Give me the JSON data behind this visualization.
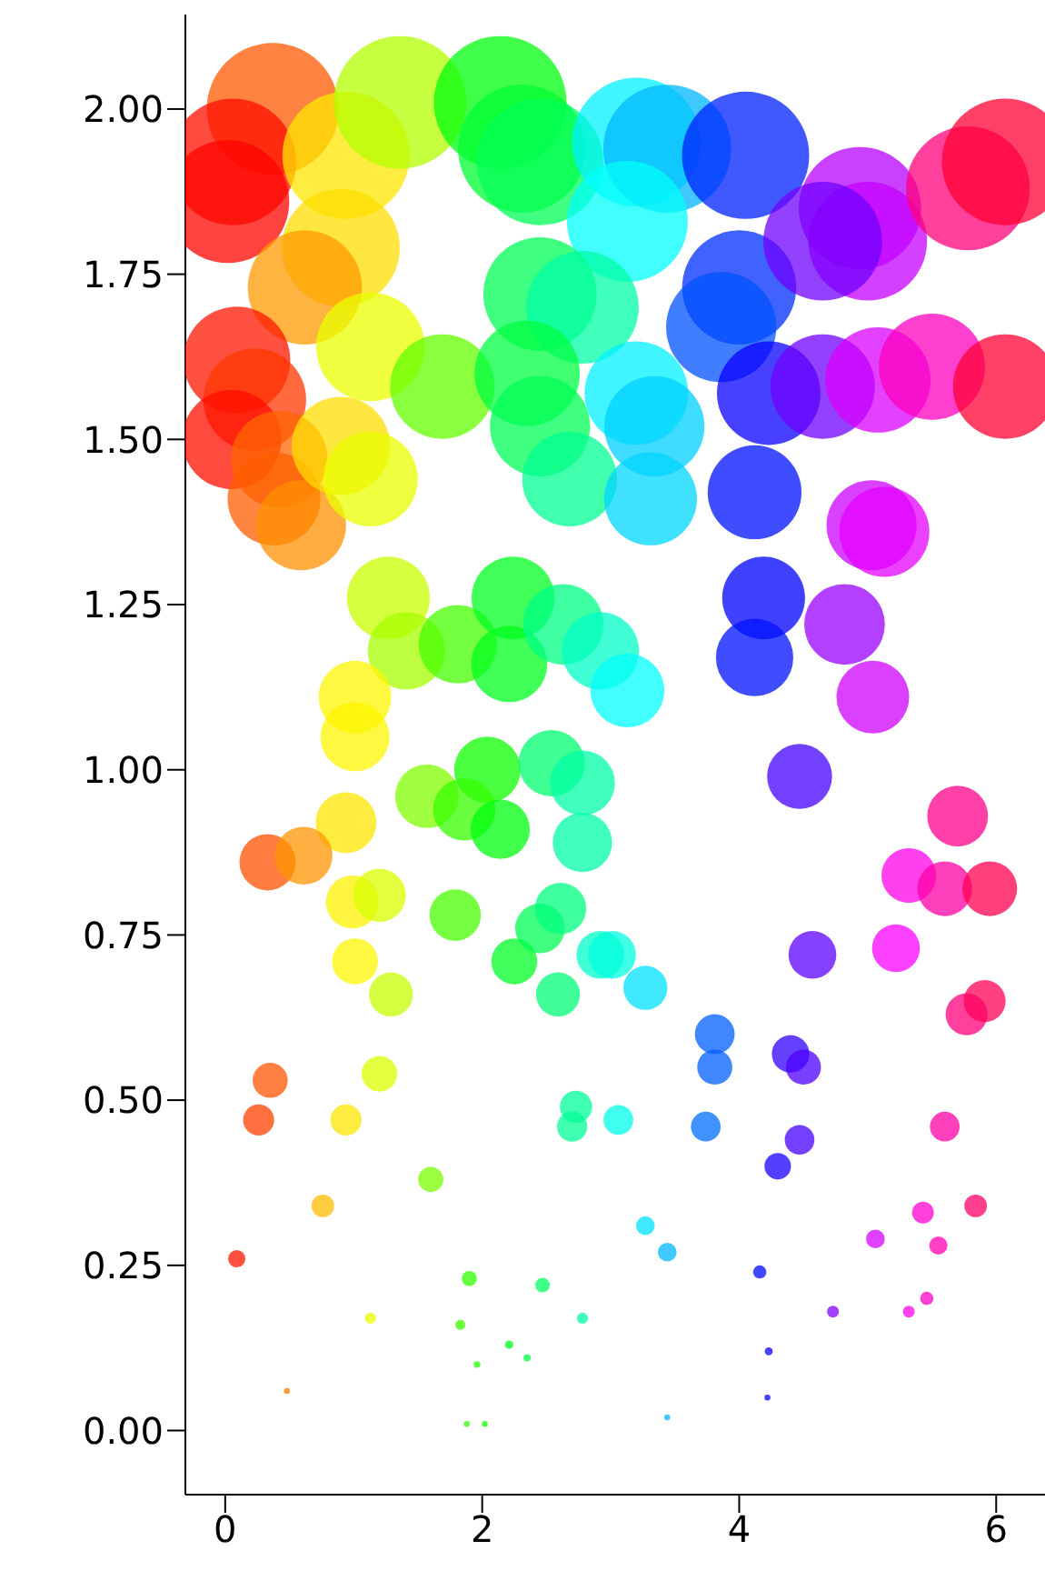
{
  "chart_data": {
    "type": "bubble",
    "x": [
      0.37,
      0.06,
      0.02,
      0.94,
      0.9,
      0.62,
      1.36,
      2.14,
      2.31,
      2.45,
      3.2,
      3.44,
      3.13,
      4.05,
      4.0,
      3.86,
      4.94,
      5.0,
      4.65,
      5.78,
      6.07,
      2.45,
      2.78,
      1.13,
      0.09,
      0.23,
      0.05,
      0.42,
      0.38,
      0.59,
      0.9,
      1.13,
      1.69,
      2.35,
      2.45,
      2.68,
      3.2,
      3.34,
      3.31,
      4.12,
      4.23,
      4.65,
      5.08,
      5.5,
      6.07,
      5.03,
      5.13,
      4.19,
      4.12,
      4.82,
      5.04,
      1.27,
      1.41,
      1.81,
      2.24,
      2.21,
      2.63,
      2.92,
      3.13,
      1.01,
      1.01,
      1.57,
      2.04,
      1.86,
      2.14,
      2.54,
      2.78,
      2.78,
      0.94,
      0.33,
      0.61,
      0.99,
      1.2,
      1.01,
      1.29,
      1.79,
      2.25,
      2.45,
      2.61,
      2.59,
      2.92,
      3.01,
      3.27,
      4.47,
      5.7,
      5.32,
      5.6,
      5.95,
      4.57,
      5.22,
      5.77,
      5.91,
      3.81,
      3.81,
      4.4,
      4.5,
      3.06,
      3.74,
      4.47,
      4.3,
      5.6,
      3.27,
      3.44,
      4.16,
      4.73,
      5.06,
      5.43,
      5.55,
      5.84,
      5.32,
      5.46,
      4.23,
      4.22,
      3.44,
      2.73,
      2.7,
      0.35,
      0.26,
      0.94,
      1.2,
      1.6,
      0.76,
      0.09,
      1.9,
      2.47,
      2.78,
      1.13,
      1.83,
      2.21,
      2.35,
      1.96,
      0.48,
      1.88,
      2.02
    ],
    "values": [
      2.0,
      1.92,
      1.86,
      1.93,
      1.79,
      1.73,
      2.01,
      2.01,
      1.94,
      1.92,
      1.95,
      1.94,
      1.83,
      1.93,
      1.73,
      1.67,
      1.85,
      1.8,
      1.8,
      1.88,
      1.92,
      1.72,
      1.7,
      1.64,
      1.62,
      1.56,
      1.5,
      1.47,
      1.41,
      1.37,
      1.49,
      1.44,
      1.58,
      1.6,
      1.52,
      1.44,
      1.57,
      1.52,
      1.41,
      1.42,
      1.57,
      1.58,
      1.59,
      1.61,
      1.58,
      1.37,
      1.36,
      1.26,
      1.17,
      1.22,
      1.11,
      1.26,
      1.18,
      1.19,
      1.26,
      1.16,
      1.22,
      1.18,
      1.12,
      1.11,
      1.05,
      0.96,
      1.0,
      0.94,
      0.91,
      1.01,
      0.98,
      0.89,
      0.92,
      0.86,
      0.87,
      0.8,
      0.81,
      0.71,
      0.66,
      0.78,
      0.71,
      0.76,
      0.79,
      0.66,
      0.72,
      0.72,
      0.67,
      0.99,
      0.93,
      0.84,
      0.82,
      0.82,
      0.72,
      0.73,
      0.63,
      0.65,
      0.6,
      0.55,
      0.57,
      0.55,
      0.47,
      0.46,
      0.44,
      0.4,
      0.46,
      0.31,
      0.27,
      0.24,
      0.18,
      0.29,
      0.33,
      0.28,
      0.34,
      0.18,
      0.2,
      0.12,
      0.05,
      0.02,
      0.49,
      0.46,
      0.53,
      0.47,
      0.47,
      0.54,
      0.38,
      0.34,
      0.26,
      0.23,
      0.22,
      0.17,
      0.17,
      0.16,
      0.13,
      0.11,
      0.1,
      0.06,
      0.01,
      0.01
    ],
    "sizes": [
      0.99,
      0.91,
      0.86,
      0.92,
      0.79,
      0.74,
      1.0,
      1.0,
      0.93,
      0.91,
      0.94,
      0.93,
      0.83,
      0.92,
      0.74,
      0.69,
      0.85,
      0.8,
      0.8,
      0.87,
      0.91,
      0.73,
      0.72,
      0.67,
      0.65,
      0.6,
      0.56,
      0.53,
      0.49,
      0.46,
      0.55,
      0.51,
      0.62,
      0.63,
      0.57,
      0.51,
      0.61,
      0.57,
      0.49,
      0.5,
      0.61,
      0.62,
      0.63,
      0.64,
      0.62,
      0.46,
      0.46,
      0.39,
      0.34,
      0.37,
      0.3,
      0.39,
      0.34,
      0.35,
      0.39,
      0.33,
      0.37,
      0.34,
      0.31,
      0.3,
      0.27,
      0.23,
      0.25,
      0.22,
      0.2,
      0.25,
      0.24,
      0.2,
      0.21,
      0.18,
      0.19,
      0.16,
      0.16,
      0.12,
      0.11,
      0.15,
      0.12,
      0.14,
      0.15,
      0.11,
      0.13,
      0.13,
      0.11,
      0.24,
      0.21,
      0.17,
      0.17,
      0.17,
      0.13,
      0.13,
      0.1,
      0.1,
      0.09,
      0.07,
      0.08,
      0.07,
      0.05,
      0.05,
      0.05,
      0.04,
      0.05,
      0.02,
      0.02,
      0.01,
      0.008,
      0.02,
      0.027,
      0.019,
      0.029,
      0.008,
      0.01,
      0.0036,
      0.002,
      0.002,
      0.059,
      0.052,
      0.07,
      0.055,
      0.055,
      0.072,
      0.036,
      0.029,
      0.017,
      0.013,
      0.012,
      0.007,
      0.007,
      0.006,
      0.004,
      0.003,
      0.0025,
      0.002,
      0.002,
      0.002
    ],
    "colors": [
      "#ff5900",
      "#ff0d00",
      "#ff0400",
      "#ffe500",
      "#ffdd00",
      "#ff9900",
      "#b3ff00",
      "#00ff0d",
      "#00ff33",
      "#00ff55",
      "#00f2ff",
      "#00b7ff",
      "#00fffb",
      "#0022ff",
      "#002fff",
      "#0051ff",
      "#b700ff",
      "#c400ff",
      "#6f00ff",
      "#ff007b",
      "#ff0033",
      "#00ff55",
      "#00ffa6",
      "#eaff00",
      "#ff1500",
      "#ff3700",
      "#ff0d00",
      "#ff6600",
      "#ff5e00",
      "#ff9000",
      "#ffdd00",
      "#eaff00",
      "#62ff00",
      "#00ff40",
      "#00ff55",
      "#00ff91",
      "#00f2ff",
      "#00d0ff",
      "#00d5ff",
      "#0011ff",
      "#0900ff",
      "#6f00ff",
      "#d900ff",
      "#ff00bf",
      "#ff0033",
      "#cc00ff",
      "#e600ff",
      "#0000ff",
      "#0011ff",
      "#9900ff",
      "#d000ff",
      "#c8ff00",
      "#a6ff00",
      "#44ff00",
      "#00ff22",
      "#00ff1e",
      "#00ff84",
      "#00ffc8",
      "#00fffb",
      "#fff600",
      "#fff600",
      "#80ff00",
      "#0dff00",
      "#37ff00",
      "#00ff0d",
      "#00ff6f",
      "#00ffa6",
      "#00ffa6",
      "#ffe500",
      "#ff5100",
      "#ff9500",
      "#fff200",
      "#d9ff00",
      "#fff600",
      "#c4ff00",
      "#48ff00",
      "#00ff26",
      "#00ff55",
      "#00ff80",
      "#00ff77",
      "#00ffc8",
      "#00ffdd",
      "#00e1ff",
      "#4400ff",
      "#ff008c",
      "#ff00ea",
      "#ff00a6",
      "#ff0051",
      "#5e00ff",
      "#fb00ff",
      "#ff007b",
      "#ff0059",
      "#005eff",
      "#005eff",
      "#3300ff",
      "#4d00ff",
      "#00ffea",
      "#006fff",
      "#4400ff",
      "#1a00ff",
      "#ff00a6",
      "#00e1ff",
      "#00b7ff",
      "#0009ff",
      "#8400ff",
      "#d500ff",
      "#ff00d0",
      "#ff00b3",
      "#ff006a",
      "#ff00ea",
      "#ff00c8",
      "#0900ff",
      "#0900ff",
      "#00b7ff",
      "#00ff99",
      "#00ff95",
      "#ff5500",
      "#ff4000",
      "#ffe500",
      "#d9ff00",
      "#77ff00",
      "#ffbb00",
      "#ff1500",
      "#2fff00",
      "#00ff5e",
      "#00ffa6",
      "#eaff00",
      "#40ff00",
      "#00ff1e",
      "#00ff40",
      "#22ff00",
      "#ff7700",
      "#33ff00",
      "#11ff00"
    ],
    "xlim": [
      -0.31,
      6.38
    ],
    "ylim": [
      -0.097,
      2.143
    ],
    "xticks": [
      0,
      2,
      4,
      6
    ],
    "yticks": [
      {
        "value": 0,
        "label": "0.00"
      },
      {
        "value": 0.25,
        "label": "0.25"
      },
      {
        "value": 0.5,
        "label": "0.50"
      },
      {
        "value": 0.75,
        "label": "0.75"
      },
      {
        "value": 1,
        "label": "1.00"
      },
      {
        "value": 1.25,
        "label": "1.25"
      },
      {
        "value": 1.5,
        "label": "1.50"
      },
      {
        "value": 1.75,
        "label": "1.75"
      },
      {
        "value": 2,
        "label": "2.00"
      }
    ]
  }
}
